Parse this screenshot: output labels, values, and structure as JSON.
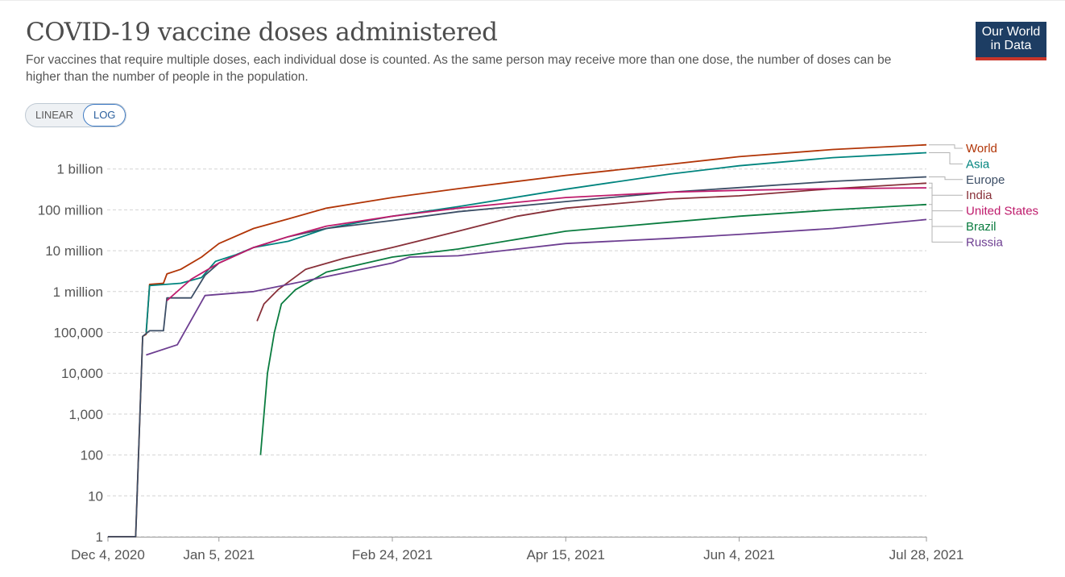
{
  "header": {
    "title": "COVID-19 vaccine doses administered",
    "subtitle": "For vaccines that require multiple doses, each individual dose is counted. As the same person may receive more than one dose, the number of doses can be higher than the number of people in the population.",
    "logo_line1": "Our World",
    "logo_line2": "in Data",
    "logo_bg": "#1d3d63",
    "logo_accent": "#c8352a"
  },
  "scale_toggle": {
    "linear_label": "LINEAR",
    "log_label": "LOG",
    "selected": "LOG"
  },
  "chart_data": {
    "type": "line",
    "scale": "log",
    "title": "COVID-19 vaccine doses administered",
    "y_ticks": [
      {
        "value": 1,
        "label": "1"
      },
      {
        "value": 10,
        "label": "10"
      },
      {
        "value": 100,
        "label": "100"
      },
      {
        "value": 1000,
        "label": "1,000"
      },
      {
        "value": 10000,
        "label": "10,000"
      },
      {
        "value": 100000,
        "label": "100,000"
      },
      {
        "value": 1000000,
        "label": "1 million"
      },
      {
        "value": 10000000,
        "label": "10 million"
      },
      {
        "value": 100000000,
        "label": "100 million"
      },
      {
        "value": 1000000000,
        "label": "1 billion"
      }
    ],
    "x_ticks": [
      "2020-12-04",
      "2021-01-05",
      "2021-02-24",
      "2021-04-15",
      "2021-06-04",
      "2021-07-28"
    ],
    "x_tick_labels": [
      "Dec 4, 2020",
      "Jan 5, 2021",
      "Feb 24, 2021",
      "Apr 15, 2021",
      "Jun 4, 2021",
      "Jul 28, 2021"
    ],
    "xlim": [
      "2020-12-04",
      "2021-07-28"
    ],
    "ylim": [
      1,
      5000000000
    ],
    "grid": true,
    "legend_position": "right",
    "series": [
      {
        "name": "World",
        "color": "#b13507",
        "points": [
          [
            "2020-12-04",
            1
          ],
          [
            "2020-12-12",
            1
          ],
          [
            "2020-12-14",
            80000
          ],
          [
            "2020-12-15",
            90000
          ],
          [
            "2020-12-16",
            1500000
          ],
          [
            "2020-12-20",
            1600000
          ],
          [
            "2020-12-21",
            2700000
          ],
          [
            "2020-12-25",
            3500000
          ],
          [
            "2020-12-31",
            7000000
          ],
          [
            "2021-01-05",
            15000000
          ],
          [
            "2021-01-15",
            35000000
          ],
          [
            "2021-01-25",
            60000000
          ],
          [
            "2021-02-05",
            110000000
          ],
          [
            "2021-02-24",
            200000000
          ],
          [
            "2021-03-15",
            330000000
          ],
          [
            "2021-04-15",
            700000000
          ],
          [
            "2021-05-15",
            1300000000
          ],
          [
            "2021-06-04",
            2000000000
          ],
          [
            "2021-07-01",
            3000000000
          ],
          [
            "2021-07-28",
            3900000000
          ]
        ]
      },
      {
        "name": "Asia",
        "color": "#00847e",
        "points": [
          [
            "2020-12-15",
            100000
          ],
          [
            "2020-12-16",
            1400000
          ],
          [
            "2020-12-25",
            1600000
          ],
          [
            "2020-12-31",
            2200000
          ],
          [
            "2021-01-04",
            5500000
          ],
          [
            "2021-01-10",
            8000000
          ],
          [
            "2021-01-15",
            12000000
          ],
          [
            "2021-01-25",
            17000000
          ],
          [
            "2021-02-05",
            35000000
          ],
          [
            "2021-02-24",
            70000000
          ],
          [
            "2021-03-15",
            120000000
          ],
          [
            "2021-04-15",
            320000000
          ],
          [
            "2021-05-15",
            750000000
          ],
          [
            "2021-06-04",
            1200000000
          ],
          [
            "2021-07-01",
            1900000000
          ],
          [
            "2021-07-28",
            2500000000
          ]
        ]
      },
      {
        "name": "Europe",
        "color": "#3c4e66",
        "points": [
          [
            "2020-12-04",
            1
          ],
          [
            "2020-12-12",
            1
          ],
          [
            "2020-12-14",
            80000
          ],
          [
            "2020-12-16",
            110000
          ],
          [
            "2020-12-20",
            110000
          ],
          [
            "2020-12-21",
            700000
          ],
          [
            "2020-12-28",
            700000
          ],
          [
            "2021-01-01",
            2500000
          ],
          [
            "2021-01-05",
            5000000
          ],
          [
            "2021-01-15",
            12000000
          ],
          [
            "2021-01-25",
            22000000
          ],
          [
            "2021-02-05",
            35000000
          ],
          [
            "2021-02-24",
            55000000
          ],
          [
            "2021-03-15",
            90000000
          ],
          [
            "2021-04-15",
            160000000
          ],
          [
            "2021-05-15",
            270000000
          ],
          [
            "2021-06-04",
            350000000
          ],
          [
            "2021-07-01",
            500000000
          ],
          [
            "2021-07-28",
            640000000
          ]
        ]
      },
      {
        "name": "India",
        "color": "#883039",
        "points": [
          [
            "2021-01-16",
            190000
          ],
          [
            "2021-01-18",
            500000
          ],
          [
            "2021-01-22",
            1100000
          ],
          [
            "2021-01-30",
            3500000
          ],
          [
            "2021-02-10",
            6500000
          ],
          [
            "2021-02-24",
            12000000
          ],
          [
            "2021-03-15",
            30000000
          ],
          [
            "2021-04-01",
            70000000
          ],
          [
            "2021-04-15",
            110000000
          ],
          [
            "2021-05-15",
            185000000
          ],
          [
            "2021-06-04",
            220000000
          ],
          [
            "2021-07-01",
            330000000
          ],
          [
            "2021-07-28",
            450000000
          ]
        ]
      },
      {
        "name": "United States",
        "color": "#be1a6b",
        "points": [
          [
            "2020-12-21",
            600000
          ],
          [
            "2020-12-28",
            2000000
          ],
          [
            "2021-01-05",
            5000000
          ],
          [
            "2021-01-15",
            12000000
          ],
          [
            "2021-01-25",
            22000000
          ],
          [
            "2021-02-05",
            40000000
          ],
          [
            "2021-02-24",
            70000000
          ],
          [
            "2021-03-15",
            110000000
          ],
          [
            "2021-04-15",
            200000000
          ],
          [
            "2021-05-15",
            270000000
          ],
          [
            "2021-06-04",
            300000000
          ],
          [
            "2021-07-01",
            330000000
          ],
          [
            "2021-07-28",
            345000000
          ]
        ]
      },
      {
        "name": "Brazil",
        "color": "#0a7c3f",
        "points": [
          [
            "2021-01-17",
            100
          ],
          [
            "2021-01-19",
            10000
          ],
          [
            "2021-01-21",
            100000
          ],
          [
            "2021-01-23",
            500000
          ],
          [
            "2021-01-27",
            1100000
          ],
          [
            "2021-02-05",
            3000000
          ],
          [
            "2021-02-24",
            7000000
          ],
          [
            "2021-03-15",
            11000000
          ],
          [
            "2021-04-15",
            30000000
          ],
          [
            "2021-05-15",
            50000000
          ],
          [
            "2021-06-04",
            70000000
          ],
          [
            "2021-07-01",
            100000000
          ],
          [
            "2021-07-28",
            135000000
          ]
        ]
      },
      {
        "name": "Russia",
        "color": "#6d3e91",
        "points": [
          [
            "2020-12-15",
            28000
          ],
          [
            "2020-12-24",
            50000
          ],
          [
            "2021-01-01",
            800000
          ],
          [
            "2021-01-15",
            1000000
          ],
          [
            "2021-02-24",
            5000000
          ],
          [
            "2021-03-01",
            7000000
          ],
          [
            "2021-03-15",
            7500000
          ],
          [
            "2021-04-15",
            15000000
          ],
          [
            "2021-05-15",
            20000000
          ],
          [
            "2021-06-04",
            25000000
          ],
          [
            "2021-07-01",
            35000000
          ],
          [
            "2021-07-28",
            58000000
          ]
        ]
      }
    ]
  }
}
